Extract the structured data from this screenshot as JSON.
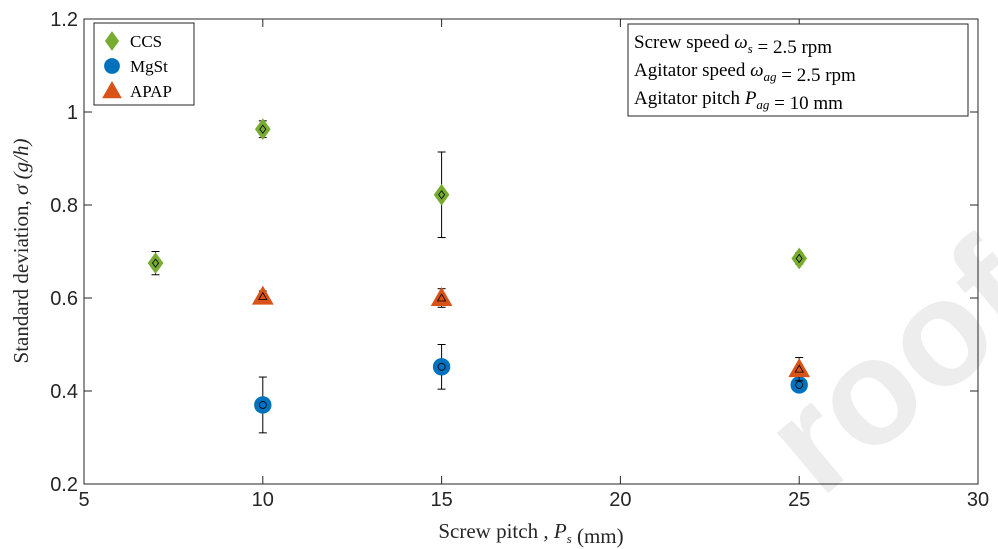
{
  "chart_data": {
    "type": "scatter",
    "title": "",
    "xlabel": "Screw pitch , P_s (mm)",
    "ylabel": "Standard deviation, σ (g/h)",
    "xlim": [
      5,
      30
    ],
    "ylim": [
      0.2,
      1.2
    ],
    "xticks": [
      "5",
      "10",
      "15",
      "20",
      "25",
      "30"
    ],
    "yticks": [
      "0.2",
      "0.4",
      "0.6",
      "0.8",
      "1",
      "1.2"
    ],
    "grid": false,
    "legend_position": "top-left",
    "series": [
      {
        "name": "CCS",
        "marker": "diamond",
        "color": "#77ac30",
        "points": [
          {
            "x": 7,
            "y": 0.675,
            "err": 0.025
          },
          {
            "x": 10,
            "y": 0.963,
            "err": 0.018
          },
          {
            "x": 15,
            "y": 0.822,
            "err": 0.092
          },
          {
            "x": 25,
            "y": 0.685,
            "err": 0.012
          }
        ]
      },
      {
        "name": "MgSt",
        "marker": "circle",
        "color": "#0072bd",
        "points": [
          {
            "x": 10,
            "y": 0.37,
            "err": 0.06
          },
          {
            "x": 15,
            "y": 0.452,
            "err": 0.048
          },
          {
            "x": 25,
            "y": 0.413,
            "err": 0.008
          }
        ]
      },
      {
        "name": "APAP",
        "marker": "triangle",
        "color": "#d95319",
        "points": [
          {
            "x": 10,
            "y": 0.603,
            "err": 0.012
          },
          {
            "x": 15,
            "y": 0.6,
            "err": 0.02
          },
          {
            "x": 25,
            "y": 0.447,
            "err": 0.025
          }
        ]
      }
    ],
    "annotation_lines": [
      "Screw speed ω_s = 2.5 rpm",
      "Agitator speed ω_ag = 2.5 rpm",
      "Agitator pitch P_ag = 10 mm"
    ]
  }
}
